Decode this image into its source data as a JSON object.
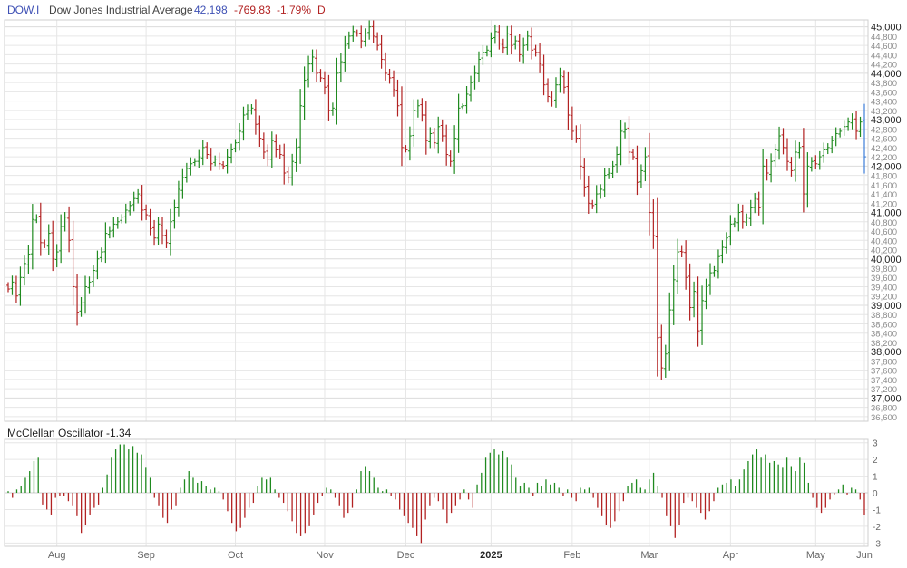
{
  "header": {
    "symbol": "DOW.I",
    "name": "Dow Jones Industrial Average",
    "last": "42,198",
    "change": "-769.83",
    "change_pct": "-1.79%",
    "period": "D"
  },
  "colors": {
    "up": "#1f8a1f",
    "down": "#b22222",
    "last_bar": "#3b7dd8",
    "symbol_text": "#3f51b5",
    "grid": "#e6e6e6",
    "frame": "#cfcfcf"
  },
  "oscillator": {
    "title": "McClellan Oscillator",
    "value": "-1.34"
  },
  "chart_data": [
    {
      "type": "ohlc",
      "x_labels": [
        "Aug",
        "Sep",
        "Oct",
        "Nov",
        "Dec",
        "2025",
        "Feb",
        "Mar",
        "Apr",
        "May",
        "Jun"
      ],
      "y_labels": [
        "45,000",
        "44,800",
        "44,600",
        "44,400",
        "44,200",
        "44,000",
        "43,800",
        "43,600",
        "43,400",
        "43,200",
        "43,000",
        "42,800",
        "42,600",
        "42,400",
        "42,200",
        "42,000",
        "41,800",
        "41,600",
        "41,400",
        "41,200",
        "41,000",
        "40,800",
        "40,600",
        "40,400",
        "40,200",
        "40,000",
        "39,800",
        "39,600",
        "39,400",
        "39,200",
        "39,000",
        "38,800",
        "38,600",
        "38,400",
        "38,200",
        "38,000",
        "37,800",
        "37,600",
        "37,400",
        "37,200",
        "37,000",
        "36,800",
        "36,600"
      ],
      "ylim": [
        36500,
        45150
      ],
      "grid": true,
      "closes": [
        39350,
        39500,
        39200,
        39600,
        39900,
        40100,
        40850,
        40900,
        40350,
        40300,
        40550,
        40000,
        40150,
        40700,
        40900,
        40400,
        39400,
        38850,
        39050,
        39400,
        39500,
        39750,
        40000,
        40150,
        40550,
        40600,
        40750,
        40800,
        40900,
        41050,
        41150,
        41300,
        41400,
        41050,
        40950,
        40650,
        40450,
        40750,
        40500,
        40350,
        40800,
        41100,
        41500,
        41750,
        41950,
        42050,
        42100,
        42200,
        42400,
        42250,
        42050,
        42150,
        42050,
        42000,
        42200,
        42350,
        42500,
        42750,
        43100,
        43200,
        43250,
        42900,
        42600,
        42300,
        42150,
        42550,
        42350,
        42250,
        41850,
        41750,
        42100,
        42400,
        43300,
        43850,
        44200,
        44350,
        44000,
        43900,
        43700,
        43200,
        43250,
        44000,
        44250,
        44600,
        44800,
        44900,
        44850,
        44700,
        44850,
        45000,
        44800,
        44600,
        44300,
        44000,
        43900,
        43650,
        43300,
        42400,
        42350,
        42650,
        43200,
        43300,
        43100,
        42550,
        42700,
        42500,
        42850,
        42650,
        42250,
        42100,
        42600,
        43250,
        43300,
        43550,
        43800,
        44000,
        44300,
        44450,
        44500,
        44750,
        44900,
        44650,
        44550,
        44850,
        44600,
        44700,
        44400,
        44600,
        44800,
        44500,
        44450,
        44200,
        43750,
        43500,
        43400,
        43750,
        43950,
        43700,
        43100,
        42750,
        42600,
        42000,
        41550,
        41200,
        41150,
        41400,
        41500,
        41800,
        41850,
        42000,
        42250,
        42750,
        42800,
        42300,
        42200,
        41650,
        41900,
        42200,
        41000,
        40500,
        38300,
        37650,
        37950,
        38900,
        39550,
        40150,
        40150,
        39600,
        38950,
        39300,
        38450,
        39100,
        39400,
        39700,
        39750,
        40050,
        40250,
        40450,
        40750,
        40800,
        41000,
        40800,
        40900,
        41100,
        41300,
        41100,
        42000,
        41850,
        42100,
        42350,
        42650,
        42400,
        42100,
        41900,
        42300,
        42400,
        41400,
        42000,
        42100,
        42050,
        42200,
        42350,
        42400,
        42550,
        42700,
        42750,
        42850,
        42950,
        43000,
        42750,
        42950,
        42200
      ],
      "last_close_label": "42,198"
    },
    {
      "type": "bar",
      "title": "McClellan Oscillator",
      "last_value": -1.34,
      "ylim": [
        -3.2,
        3.2
      ],
      "y_ticks": [
        3,
        2,
        1,
        0,
        -1,
        -2,
        -3
      ],
      "values": [
        0.1,
        -0.3,
        0.2,
        0.4,
        0.9,
        1.3,
        1.9,
        2.1,
        -0.7,
        -1.0,
        -1.3,
        -0.3,
        -0.2,
        -0.2,
        -0.5,
        -0.8,
        -1.4,
        -2.4,
        -1.9,
        -1.3,
        -0.9,
        -0.7,
        0.3,
        1.1,
        2.1,
        2.6,
        2.9,
        2.9,
        2.6,
        2.8,
        2.4,
        2.3,
        1.5,
        0.9,
        -0.3,
        -0.8,
        -1.5,
        -1.8,
        -1.0,
        -0.8,
        0.3,
        0.8,
        1.3,
        0.9,
        0.6,
        0.7,
        0.4,
        0.2,
        0.3,
        0.1,
        -0.4,
        -1.1,
        -1.8,
        -2.3,
        -2.1,
        -1.5,
        -0.9,
        -0.6,
        0.4,
        0.9,
        0.8,
        0.9,
        0.2,
        -0.3,
        -0.6,
        -1.1,
        -1.7,
        -2.4,
        -2.6,
        -2.4,
        -2.0,
        -1.3,
        -0.6,
        -0.2,
        0.3,
        0.2,
        -0.3,
        -0.8,
        -1.5,
        -1.2,
        -0.9,
        0.2,
        1.3,
        1.6,
        1.3,
        0.9,
        0.3,
        0.1,
        0.2,
        -0.2,
        -0.4,
        -1.0,
        -1.4,
        -1.8,
        -2.1,
        -2.6,
        -3.0,
        -1.6,
        -0.8,
        -0.3,
        -0.5,
        -1.0,
        -1.8,
        -1.2,
        -0.8,
        -0.4,
        0.2,
        -0.4,
        -0.9,
        0.5,
        1.2,
        2.1,
        2.4,
        2.6,
        2.3,
        2.5,
        2.1,
        1.7,
        0.9,
        0.4,
        0.6,
        0.3,
        -0.2,
        0.6,
        0.4,
        0.8,
        0.5,
        0.6,
        0.3,
        -0.2,
        0.2,
        -0.3,
        -0.5,
        0.3,
        0.2,
        0.3,
        -0.3,
        -0.9,
        -1.4,
        -1.9,
        -2.1,
        -1.7,
        -1.1,
        -0.5,
        0.4,
        0.6,
        0.8,
        0.3,
        0.2,
        0.8,
        1.2,
        0.4,
        -0.3,
        -1.4,
        -2.0,
        -2.7,
        -1.9,
        -0.6,
        -0.3,
        -0.5,
        -0.9,
        -1.2,
        -1.6,
        -1.1,
        -0.5,
        0.3,
        0.5,
        0.6,
        0.8,
        0.4,
        0.8,
        1.4,
        1.9,
        2.3,
        2.6,
        2.1,
        2.3,
        1.8,
        1.9,
        1.7,
        1.5,
        2.1,
        1.6,
        1.3,
        2.1,
        1.8,
        0.6,
        -0.3,
        -0.9,
        -1.2,
        -0.9,
        -0.4,
        -0.1,
        0.2,
        0.5,
        -0.1,
        0.3,
        0.2,
        -0.4,
        -1.34
      ]
    }
  ]
}
